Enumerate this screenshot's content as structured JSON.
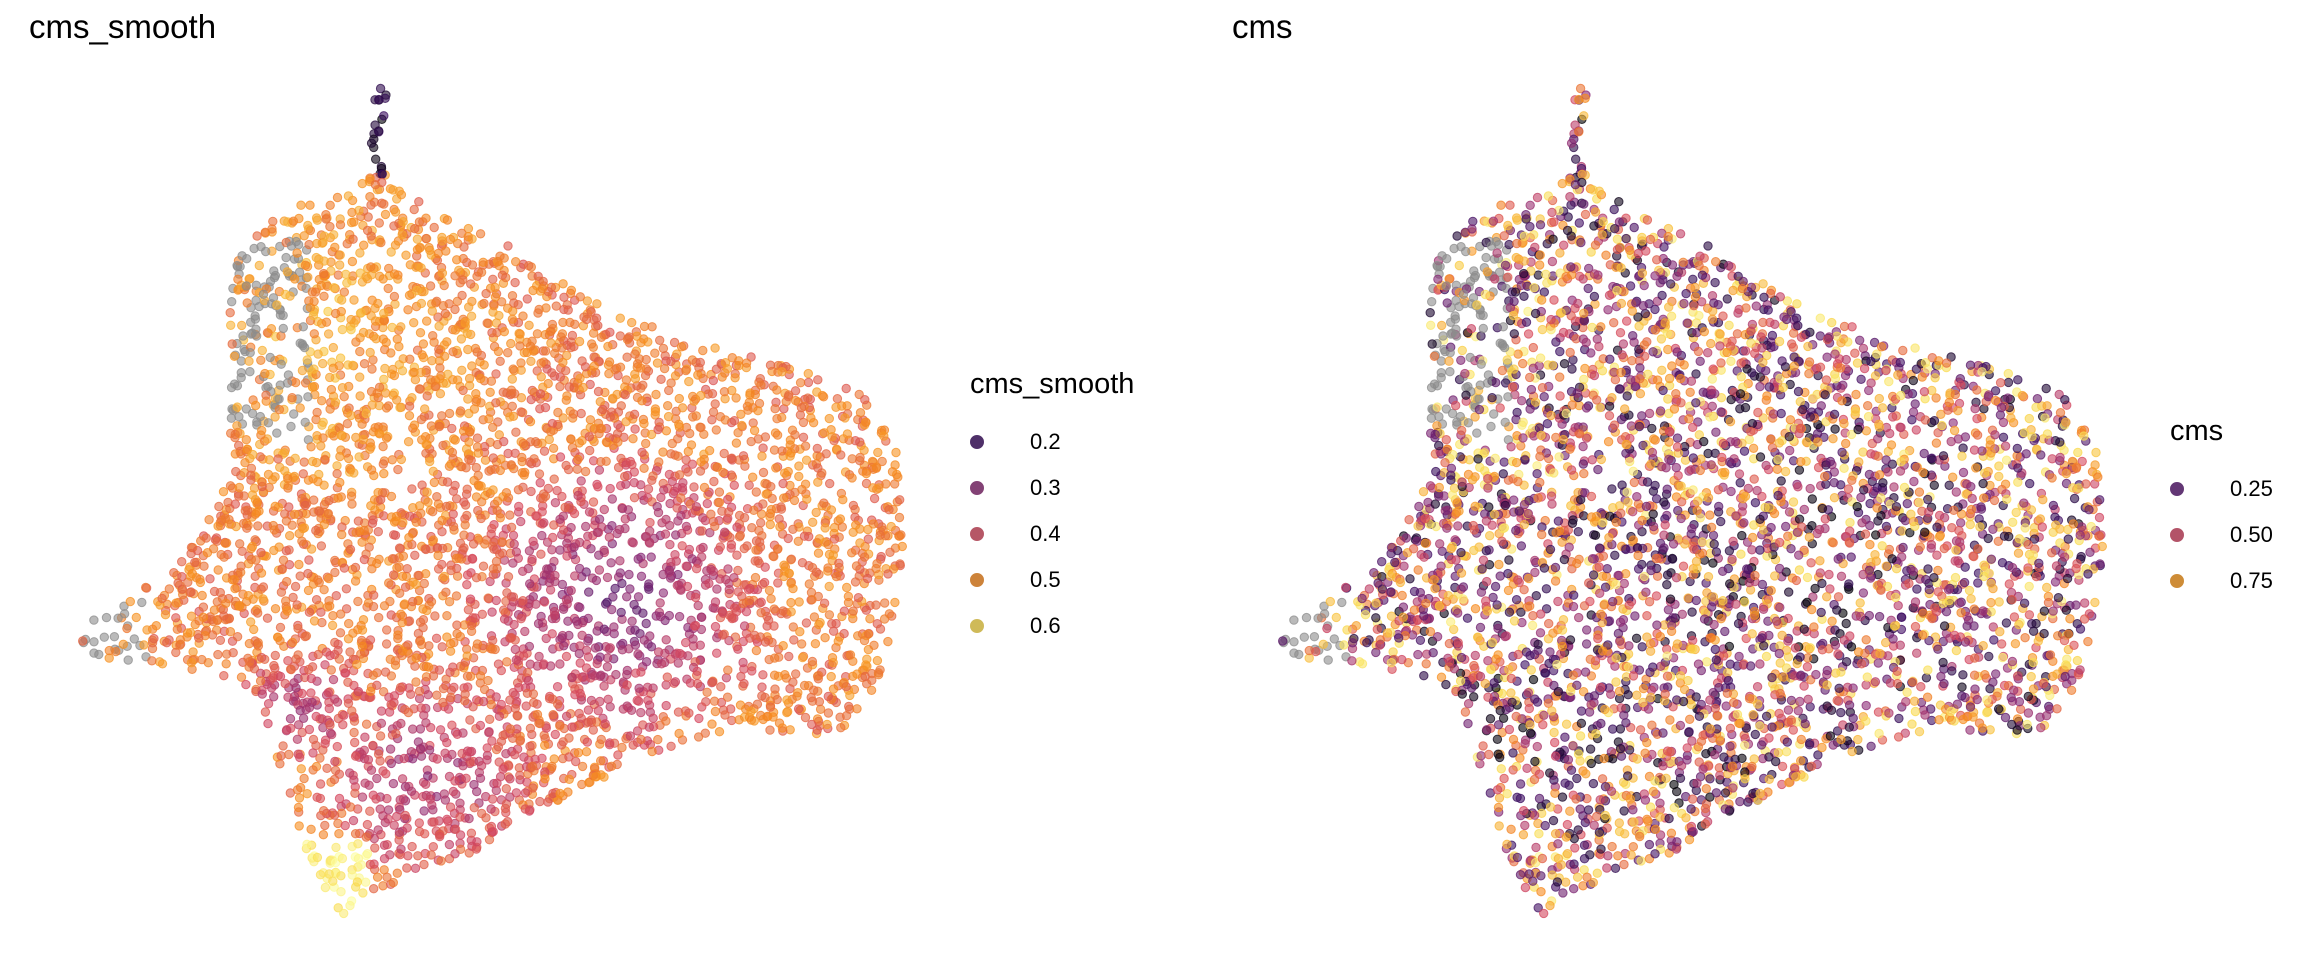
{
  "chart_data": [
    {
      "type": "scatter",
      "title": "cms_smooth",
      "legend": {
        "title": "cms_smooth",
        "placement": "right",
        "entries": [
          {
            "label": "0.2",
            "value": 0.2,
            "color": "#3d0f63"
          },
          {
            "label": "0.3",
            "value": 0.3,
            "color": "#8a2a75"
          },
          {
            "label": "0.4",
            "value": 0.4,
            "color": "#d5485f"
          },
          {
            "label": "0.5",
            "value": 0.5,
            "color": "#f68a1e"
          },
          {
            "label": "0.6",
            "value": 0.6,
            "color": "#f9d94c"
          }
        ]
      },
      "na_color": "#8c8c8c",
      "grid": false,
      "axes": "none"
    },
    {
      "type": "scatter",
      "title": "cms",
      "legend": {
        "title": "cms",
        "placement": "right",
        "entries": [
          {
            "label": "0.25",
            "value": 0.25,
            "color": "#5a1a74"
          },
          {
            "label": "0.50",
            "value": 0.5,
            "color": "#cf4462"
          },
          {
            "label": "0.75",
            "value": 0.75,
            "color": "#f7961a"
          }
        ]
      },
      "na_color": "#8c8c8c",
      "grid": false,
      "axes": "none"
    }
  ]
}
